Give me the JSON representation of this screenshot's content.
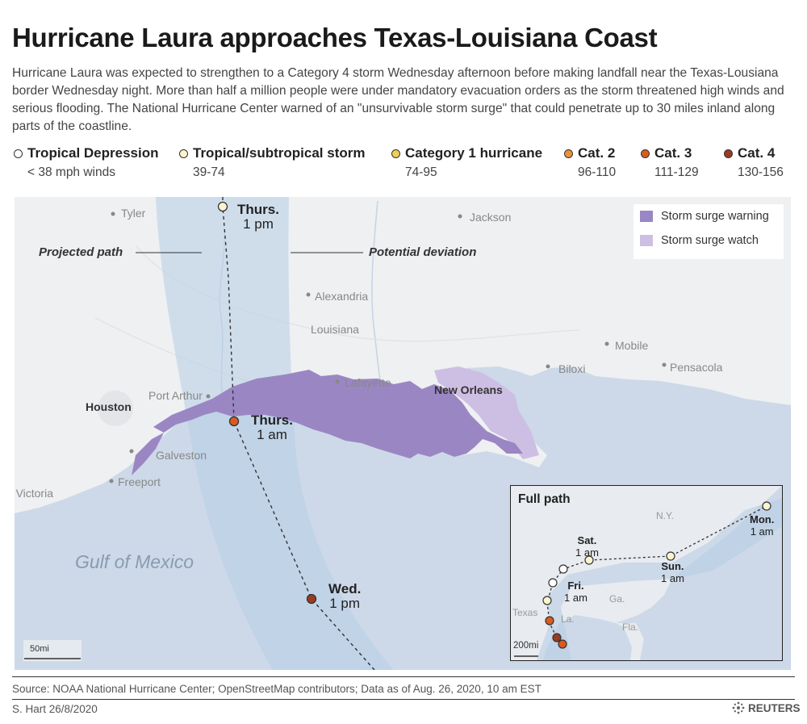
{
  "title": "Hurricane Laura approaches Texas-Louisiana Coast",
  "intro": "Hurricane Laura was expected to strengthen to a Category 4 storm Wednesday afternoon before making landfall near the Texas-Lousiana border Wednesday night. More than half a million people were under mandatory evacuation orders as the storm threatened high winds and serious flooding. The National Hurricane Center warned of an \"unsurvivable storm surge\" that could penetrate up to 30 miles inland along parts of the coastline.",
  "legend": [
    {
      "name": "Tropical Depression",
      "range": "< 38 mph winds",
      "color": "#ffffff"
    },
    {
      "name": "Tropical/subtropical storm",
      "range": "39-74",
      "color": "#fbf4cf"
    },
    {
      "name": "Category 1 hurricane",
      "range": "74-95",
      "color": "#f2cf57"
    },
    {
      "name": "Cat. 2",
      "range": "96-110",
      "color": "#ec913a"
    },
    {
      "name": "Cat. 3",
      "range": "111-129",
      "color": "#dd5a1f"
    },
    {
      "name": "Cat. 4",
      "range": "130-156",
      "color": "#9c3b1f"
    }
  ],
  "map": {
    "places": {
      "tyler": "Tyler",
      "jackson": "Jackson",
      "alexandria": "Alexandria",
      "louisiana": "Louisiana",
      "mobile": "Mobile",
      "biloxi": "Biloxi",
      "pensacola": "Pensacola",
      "lafayette": "Lafayette",
      "new_orleans": "New Orleans",
      "houston": "Houston",
      "port_arthur": "Port Arthur",
      "galveston": "Galveston",
      "freeport": "Freeport",
      "victoria": "Victoria",
      "gulf": "Gulf of Mexico"
    },
    "annotations": {
      "projected_path": "Projected path",
      "potential_deviation": "Potential deviation"
    },
    "positions": [
      {
        "day": "Thurs.",
        "time": "1 pm",
        "category": "Tropical/subtropical storm"
      },
      {
        "day": "Thurs.",
        "time": "1 am",
        "category": "Cat. 3"
      },
      {
        "day": "Wed.",
        "time": "1 pm",
        "category": "Cat. 4"
      }
    ],
    "surge_legend": {
      "warning": "Storm surge warning",
      "watch": "Storm surge watch",
      "warning_color": "#9b86c4",
      "watch_color": "#cdbfe3"
    },
    "scale": "50mi"
  },
  "inset": {
    "title": "Full path",
    "scale": "200mi",
    "places": {
      "ny": "N.Y.",
      "ga": "Ga.",
      "fla": "Fla.",
      "texas": "Texas",
      "la": "La."
    },
    "positions": [
      {
        "day": "Mon.",
        "time": "1 am"
      },
      {
        "day": "Sun.",
        "time": "1 am"
      },
      {
        "day": "Sat.",
        "time": "1 am"
      },
      {
        "day": "Fri.",
        "time": "1 am"
      }
    ]
  },
  "source": "Source: NOAA National Hurricane Center; OpenStreetMap contributors; Data as of Aug. 26, 2020, 10 am EST",
  "credit": "S. Hart 26/8/2020",
  "publisher": "REUTERS",
  "colors": {
    "water": "#cdd9e8",
    "land": "#eef0f2",
    "cone": "#b7cde5"
  }
}
